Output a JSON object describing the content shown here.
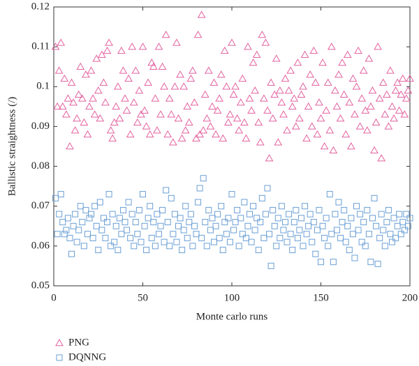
{
  "chart_data": {
    "type": "scatter",
    "xlabel": "Monte carlo runs",
    "ylabel": "Ballistic straightness (/)",
    "xlim": [
      0,
      200
    ],
    "xticks": [
      0,
      50,
      100,
      150,
      200
    ],
    "ylim": [
      0.05,
      0.12
    ],
    "yticks": [
      0.05,
      0.06,
      0.07,
      0.08,
      0.09,
      0.1,
      0.11,
      0.12
    ],
    "legend": "below",
    "x": [
      1,
      2,
      3,
      4,
      5,
      6,
      7,
      8,
      9,
      10,
      11,
      12,
      13,
      14,
      15,
      16,
      17,
      18,
      19,
      20,
      21,
      22,
      23,
      24,
      25,
      26,
      27,
      28,
      29,
      30,
      31,
      32,
      33,
      34,
      35,
      36,
      37,
      38,
      39,
      40,
      41,
      42,
      43,
      44,
      45,
      46,
      47,
      48,
      49,
      50,
      51,
      52,
      53,
      54,
      55,
      56,
      57,
      58,
      59,
      60,
      61,
      62,
      63,
      64,
      65,
      66,
      67,
      68,
      69,
      70,
      71,
      72,
      73,
      74,
      75,
      76,
      77,
      78,
      79,
      80,
      81,
      82,
      83,
      84,
      85,
      86,
      87,
      88,
      89,
      90,
      91,
      92,
      93,
      94,
      95,
      96,
      97,
      98,
      99,
      100,
      101,
      102,
      103,
      104,
      105,
      106,
      107,
      108,
      109,
      110,
      111,
      112,
      113,
      114,
      115,
      116,
      117,
      118,
      119,
      120,
      121,
      122,
      123,
      124,
      125,
      126,
      127,
      128,
      129,
      130,
      131,
      132,
      133,
      134,
      135,
      136,
      137,
      138,
      139,
      140,
      141,
      142,
      143,
      144,
      145,
      146,
      147,
      148,
      149,
      150,
      151,
      152,
      153,
      154,
      155,
      156,
      157,
      158,
      159,
      160,
      161,
      162,
      163,
      164,
      165,
      166,
      167,
      168,
      169,
      170,
      171,
      172,
      173,
      174,
      175,
      176,
      177,
      178,
      179,
      180,
      181,
      182,
      183,
      184,
      185,
      186,
      187,
      188,
      189,
      190,
      191,
      192,
      193,
      194,
      195,
      196,
      197,
      198,
      199,
      200
    ],
    "series": [
      {
        "name": "PNG",
        "color": "#e2619f",
        "marker": "triangle",
        "values": [
          0.11,
          0.095,
          0.104,
          0.111,
          0.095,
          0.102,
          0.093,
          0.097,
          0.085,
          0.101,
          0.096,
          0.089,
          0.092,
          0.098,
          0.105,
          0.097,
          0.091,
          0.103,
          0.088,
          0.095,
          0.104,
          0.097,
          0.093,
          0.107,
          0.099,
          0.092,
          0.108,
          0.101,
          0.096,
          0.109,
          0.111,
          0.089,
          0.087,
          0.091,
          0.095,
          0.1,
          0.092,
          0.109,
          0.104,
          0.097,
          0.094,
          0.102,
          0.088,
          0.11,
          0.096,
          0.104,
          0.091,
          0.099,
          0.093,
          0.11,
          0.094,
          0.09,
          0.101,
          0.088,
          0.106,
          0.105,
          0.097,
          0.089,
          0.11,
          0.093,
          0.105,
          0.1,
          0.113,
          0.088,
          0.097,
          0.093,
          0.086,
          0.1,
          0.111,
          0.092,
          0.103,
          0.087,
          0.1,
          0.089,
          0.095,
          0.091,
          0.102,
          0.104,
          0.096,
          0.087,
          0.113,
          0.088,
          0.118,
          0.089,
          0.098,
          0.092,
          0.104,
          0.09,
          0.095,
          0.101,
          0.088,
          0.094,
          0.097,
          0.103,
          0.087,
          0.109,
          0.1,
          0.091,
          0.093,
          0.111,
          0.098,
          0.1,
          0.092,
          0.089,
          0.096,
          0.102,
          0.091,
          0.087,
          0.11,
          0.097,
          0.094,
          0.106,
          0.099,
          0.108,
          0.091,
          0.086,
          0.113,
          0.097,
          0.111,
          0.094,
          0.082,
          0.101,
          0.092,
          0.098,
          0.107,
          0.086,
          0.099,
          0.096,
          0.093,
          0.102,
          0.089,
          0.099,
          0.104,
          0.095,
          0.097,
          0.09,
          0.106,
          0.092,
          0.098,
          0.1,
          0.108,
          0.087,
          0.095,
          0.103,
          0.09,
          0.109,
          0.101,
          0.088,
          0.096,
          0.092,
          0.106,
          0.085,
          0.094,
          0.101,
          0.089,
          0.11,
          0.084,
          0.099,
          0.095,
          0.103,
          0.092,
          0.106,
          0.098,
          0.088,
          0.108,
          0.096,
          0.085,
          0.102,
          0.093,
          0.1,
          0.109,
          0.09,
          0.097,
          0.104,
          0.094,
          0.089,
          0.107,
          0.095,
          0.099,
          0.084,
          0.091,
          0.11,
          0.097,
          0.082,
          0.101,
          0.093,
          0.098,
          0.09,
          0.104,
          0.095,
          0.092,
          0.099,
          0.101,
          0.094,
          0.098,
          0.102,
          0.093,
          0.097,
          0.099,
          0.102
        ]
      },
      {
        "name": "DQNNG",
        "color": "#6a9fd4",
        "marker": "square",
        "values": [
          0.072,
          0.063,
          0.068,
          0.073,
          0.066,
          0.063,
          0.064,
          0.067,
          0.062,
          0.058,
          0.065,
          0.068,
          0.061,
          0.064,
          0.07,
          0.066,
          0.06,
          0.069,
          0.063,
          0.067,
          0.068,
          0.062,
          0.07,
          0.065,
          0.059,
          0.071,
          0.064,
          0.067,
          0.062,
          0.066,
          0.073,
          0.06,
          0.068,
          0.061,
          0.065,
          0.059,
          0.067,
          0.063,
          0.069,
          0.066,
          0.064,
          0.071,
          0.062,
          0.068,
          0.06,
          0.066,
          0.063,
          0.069,
          0.061,
          0.073,
          0.065,
          0.059,
          0.067,
          0.07,
          0.062,
          0.066,
          0.06,
          0.068,
          0.063,
          0.065,
          0.069,
          0.061,
          0.074,
          0.066,
          0.06,
          0.072,
          0.063,
          0.068,
          0.061,
          0.065,
          0.067,
          0.059,
          0.064,
          0.07,
          0.062,
          0.066,
          0.068,
          0.06,
          0.065,
          0.063,
          0.071,
          0.0745,
          0.062,
          0.077,
          0.066,
          0.06,
          0.069,
          0.064,
          0.067,
          0.061,
          0.065,
          0.068,
          0.062,
          0.07,
          0.059,
          0.066,
          0.063,
          0.067,
          0.061,
          0.073,
          0.064,
          0.066,
          0.069,
          0.06,
          0.067,
          0.063,
          0.071,
          0.062,
          0.065,
          0.068,
          0.061,
          0.07,
          0.064,
          0.067,
          0.059,
          0.066,
          0.072,
          0.062,
          0.068,
          0.0745,
          0.063,
          0.055,
          0.069,
          0.065,
          0.06,
          0.067,
          0.062,
          0.07,
          0.064,
          0.066,
          0.061,
          0.068,
          0.063,
          0.059,
          0.066,
          0.069,
          0.062,
          0.064,
          0.067,
          0.06,
          0.07,
          0.063,
          0.065,
          0.068,
          0.061,
          0.066,
          0.058,
          0.064,
          0.069,
          0.056,
          0.065,
          0.062,
          0.067,
          0.06,
          0.073,
          0.063,
          0.056,
          0.068,
          0.064,
          0.071,
          0.062,
          0.066,
          0.069,
          0.061,
          0.065,
          0.059,
          0.067,
          0.063,
          0.057,
          0.07,
          0.064,
          0.068,
          0.061,
          0.066,
          0.06,
          0.069,
          0.063,
          0.056,
          0.067,
          0.072,
          0.065,
          0.0555,
          0.062,
          0.068,
          0.064,
          0.06,
          0.066,
          0.069,
          0.063,
          0.061,
          0.067,
          0.062,
          0.065,
          0.068,
          0.063,
          0.066,
          0.064,
          0.068,
          0.065,
          0.067
        ]
      }
    ]
  }
}
